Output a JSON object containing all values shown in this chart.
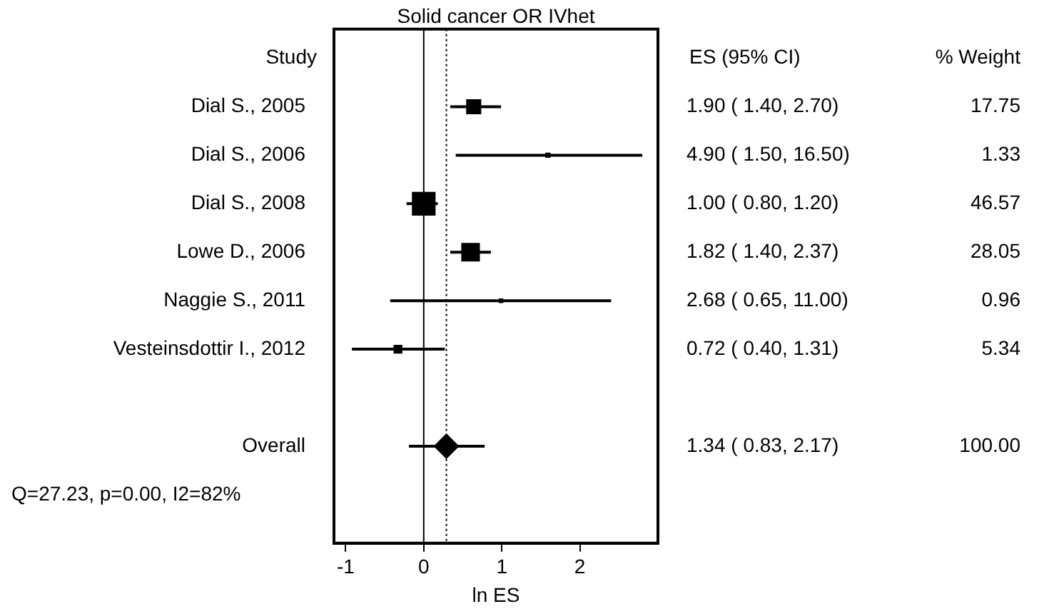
{
  "chart_data": {
    "type": "scatter",
    "orientation": "horizontal",
    "title": "Solid cancer OR IVhet",
    "xlabel": "ln ES",
    "ylabel": "Study",
    "categories": [
      "Dial S., 2005",
      "Dial S., 2006",
      "Dial S., 2008",
      "Lowe D., 2006",
      "Naggie S., 2011",
      "Vesteinsdottir I., 2012",
      null,
      "Overall"
    ],
    "series": [
      {
        "type": "scatter",
        "marker": "square",
        "color": "#000000",
        "values": [
          0.64,
          1.59,
          0,
          0.6,
          0.99,
          -0.33,
          null,
          null
        ],
        "errors": [
          [
            0.34,
            0.99
          ],
          [
            0.41,
            2.8
          ],
          [
            -0.22,
            0.18
          ],
          [
            0.34,
            0.86
          ],
          [
            -0.43,
            2.4
          ],
          [
            -0.92,
            0.27
          ],
          null,
          null
        ],
        "sizes": [
          0.38,
          0.03,
          1,
          0.6,
          0.02,
          0.11,
          null,
          null
        ]
      },
      {
        "type": "scatter",
        "marker": "diamond",
        "color": "#000000",
        "values": [
          null,
          null,
          null,
          null,
          null,
          null,
          null,
          0.29
        ],
        "errors": [
          null,
          null,
          null,
          null,
          null,
          null,
          null,
          [
            -0.19,
            0.78
          ]
        ]
      }
    ],
    "annotations": [
      "ES (95% CI)",
      "% Weight",
      "1.90 ( 1.40, 2.70)",
      "17.75",
      "4.90 ( 1.50, 16.50)",
      "1.33",
      "1.00 ( 0.80, 1.20)",
      "46.57",
      "1.82 ( 1.40, 2.37)",
      "28.05",
      "2.68 ( 0.65, 11.00)",
      "0.96",
      "0.72 ( 0.40, 1.31)",
      "5.34",
      "1.34 ( 0.83, 2.17)",
      "100.00",
      "Q=27.23, p=0.00, I2=82%"
    ],
    "ref_lines": [
      {
        "axis": "x",
        "value": 0,
        "color": "#000000",
        "line_style": "solid"
      },
      {
        "axis": "x",
        "value": 0.29,
        "color": "#000000",
        "line_style": "dotted"
      }
    ],
    "xlim": [
      -1.15,
      3
    ],
    "xticks": [
      -1,
      0,
      1,
      2
    ],
    "grid": false,
    "legend": false
  }
}
